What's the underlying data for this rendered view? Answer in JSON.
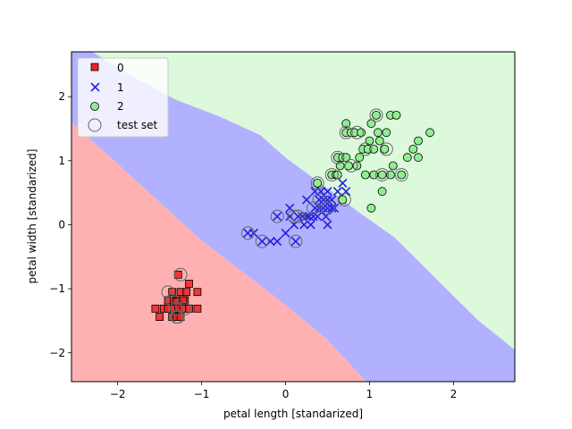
{
  "chart_data": {
    "type": "scatter",
    "xlabel": "petal length [standarized]",
    "ylabel": "petal width [standarized]",
    "xlim": [
      -2.55,
      2.73
    ],
    "ylim": [
      -2.45,
      2.7
    ],
    "xticks": [
      -2,
      -1,
      0,
      1,
      2
    ],
    "yticks": [
      -2,
      -1,
      0,
      1,
      2
    ],
    "xtick_labels": [
      "−2",
      "−1",
      "0",
      "1",
      "2"
    ],
    "ytick_labels": [
      "−2",
      "−1",
      "0",
      "1",
      "2"
    ],
    "grid": false,
    "legend_position": "top-left",
    "regions": [
      {
        "class": "0",
        "color": "#ffb1b1",
        "edge_color": "#c8326e",
        "polygon": [
          [
            -2.55,
            1.6
          ],
          [
            -2.0,
            0.95
          ],
          [
            -1.5,
            0.35
          ],
          [
            -1.0,
            -0.25
          ],
          [
            -0.5,
            -0.75
          ],
          [
            0.0,
            -1.25
          ],
          [
            0.5,
            -1.8
          ],
          [
            0.96,
            -2.45
          ],
          [
            -2.55,
            -2.45
          ]
        ]
      },
      {
        "class": "1",
        "color": "#b1b1ff",
        "edge_color": "#6aa8cc",
        "polygon": [
          [
            -2.55,
            2.7
          ],
          [
            -2.3,
            2.7
          ],
          [
            -1.8,
            2.3
          ],
          [
            -1.3,
            1.95
          ],
          [
            -0.8,
            1.7
          ],
          [
            -0.3,
            1.4
          ],
          [
            0.0,
            1.05
          ],
          [
            0.55,
            0.52
          ],
          [
            0.85,
            0.22
          ],
          [
            1.3,
            -0.2
          ],
          [
            1.8,
            -0.85
          ],
          [
            2.3,
            -1.5
          ],
          [
            2.73,
            -1.95
          ],
          [
            2.73,
            -2.45
          ],
          [
            0.96,
            -2.45
          ],
          [
            0.5,
            -1.8
          ],
          [
            0.0,
            -1.25
          ],
          [
            -0.5,
            -0.75
          ],
          [
            -1.0,
            -0.25
          ],
          [
            -1.5,
            0.35
          ],
          [
            -2.0,
            0.95
          ],
          [
            -2.55,
            1.6
          ]
        ]
      },
      {
        "class": "2",
        "color": "#dcf9dc",
        "edge_color": "#6aa8cc",
        "polygon": [
          [
            -2.3,
            2.7
          ],
          [
            2.73,
            2.7
          ],
          [
            2.73,
            -1.95
          ],
          [
            2.3,
            -1.5
          ],
          [
            1.8,
            -0.85
          ],
          [
            1.3,
            -0.2
          ],
          [
            0.85,
            0.22
          ],
          [
            0.55,
            0.52
          ],
          [
            0.0,
            1.05
          ],
          [
            -0.3,
            1.4
          ],
          [
            -0.8,
            1.7
          ],
          [
            -1.3,
            1.95
          ],
          [
            -1.8,
            2.3
          ]
        ]
      }
    ],
    "series": [
      {
        "name": "0",
        "marker": "square",
        "color": "#ee2222",
        "points": [
          [
            -1.28,
            -0.78
          ],
          [
            -1.35,
            -1.05
          ],
          [
            -1.25,
            -1.05
          ],
          [
            -1.18,
            -1.05
          ],
          [
            -1.05,
            -1.05
          ],
          [
            -1.4,
            -1.18
          ],
          [
            -1.33,
            -1.18
          ],
          [
            -1.28,
            -1.18
          ],
          [
            -1.2,
            -1.18
          ],
          [
            -1.15,
            -0.92
          ],
          [
            -1.55,
            -1.31
          ],
          [
            -1.45,
            -1.31
          ],
          [
            -1.4,
            -1.31
          ],
          [
            -1.33,
            -1.31
          ],
          [
            -1.28,
            -1.31
          ],
          [
            -1.22,
            -1.31
          ],
          [
            -1.15,
            -1.31
          ],
          [
            -1.05,
            -1.31
          ],
          [
            -1.5,
            -1.44
          ],
          [
            -1.35,
            -1.44
          ],
          [
            -1.3,
            -1.44
          ],
          [
            -1.25,
            -1.44
          ],
          [
            -1.3,
            -1.2
          ],
          [
            -1.22,
            -1.18
          ]
        ]
      },
      {
        "name": "1",
        "marker": "x",
        "color": "#2222dd",
        "points": [
          [
            -0.45,
            -0.13
          ],
          [
            -0.38,
            -0.13
          ],
          [
            -0.28,
            -0.26
          ],
          [
            -0.18,
            -0.26
          ],
          [
            -0.1,
            -0.26
          ],
          [
            -0.1,
            0.13
          ],
          [
            0.0,
            -0.13
          ],
          [
            0.05,
            0.13
          ],
          [
            0.05,
            0.26
          ],
          [
            0.1,
            0.0
          ],
          [
            0.12,
            -0.26
          ],
          [
            0.15,
            0.13
          ],
          [
            0.2,
            0.13
          ],
          [
            0.22,
            0.0
          ],
          [
            0.25,
            0.13
          ],
          [
            0.25,
            0.39
          ],
          [
            0.28,
            0.13
          ],
          [
            0.3,
            0.0
          ],
          [
            0.33,
            0.13
          ],
          [
            0.35,
            0.26
          ],
          [
            0.38,
            0.13
          ],
          [
            0.4,
            0.26
          ],
          [
            0.4,
            0.39
          ],
          [
            0.42,
            0.52
          ],
          [
            0.45,
            0.26
          ],
          [
            0.45,
            0.39
          ],
          [
            0.48,
            0.13
          ],
          [
            0.5,
            0.26
          ],
          [
            0.5,
            0.39
          ],
          [
            0.5,
            0.52
          ],
          [
            0.5,
            0.0
          ],
          [
            0.55,
            0.39
          ],
          [
            0.55,
            0.26
          ],
          [
            0.62,
            0.52
          ],
          [
            0.68,
            0.65
          ],
          [
            0.72,
            0.52
          ],
          [
            0.35,
            0.52
          ],
          [
            0.58,
            0.26
          ]
        ]
      },
      {
        "name": "2",
        "marker": "circle",
        "color": "#90ee90",
        "points": [
          [
            0.38,
            0.65
          ],
          [
            0.55,
            0.78
          ],
          [
            0.6,
            0.78
          ],
          [
            0.62,
            1.05
          ],
          [
            0.65,
            0.92
          ],
          [
            0.68,
            1.05
          ],
          [
            0.68,
            0.39
          ],
          [
            0.72,
            1.05
          ],
          [
            0.72,
            1.44
          ],
          [
            0.72,
            1.58
          ],
          [
            0.75,
            0.92
          ],
          [
            0.78,
            1.44
          ],
          [
            0.82,
            1.44
          ],
          [
            0.85,
            0.92
          ],
          [
            0.9,
            1.44
          ],
          [
            0.92,
            1.18
          ],
          [
            0.95,
            0.78
          ],
          [
            0.98,
            1.18
          ],
          [
            1.0,
            1.31
          ],
          [
            1.02,
            1.58
          ],
          [
            1.02,
            0.26
          ],
          [
            1.05,
            1.18
          ],
          [
            1.05,
            0.78
          ],
          [
            1.08,
            1.71
          ],
          [
            1.1,
            1.44
          ],
          [
            1.12,
            1.31
          ],
          [
            1.15,
            0.78
          ],
          [
            1.15,
            0.52
          ],
          [
            1.18,
            1.18
          ],
          [
            1.2,
            1.44
          ],
          [
            1.25,
            0.78
          ],
          [
            1.25,
            1.71
          ],
          [
            1.28,
            0.92
          ],
          [
            1.32,
            1.71
          ],
          [
            1.38,
            0.78
          ],
          [
            1.45,
            1.05
          ],
          [
            1.52,
            1.18
          ],
          [
            1.58,
            1.31
          ],
          [
            1.58,
            1.05
          ],
          [
            1.72,
            1.44
          ],
          [
            0.88,
            1.05
          ],
          [
            0.62,
            0.78
          ]
        ]
      }
    ],
    "test_set": {
      "name": "test set",
      "marker": "open-circle",
      "edge_color": "#666666",
      "points": [
        [
          -1.25,
          -0.78
        ],
        [
          -1.4,
          -1.05
        ],
        [
          -1.35,
          -1.18
        ],
        [
          -1.3,
          -1.31
        ],
        [
          -1.3,
          -1.44
        ],
        [
          -1.2,
          -1.31
        ],
        [
          -1.28,
          -1.44
        ],
        [
          -0.45,
          -0.13
        ],
        [
          -0.28,
          -0.26
        ],
        [
          -0.1,
          0.13
        ],
        [
          0.12,
          -0.26
        ],
        [
          0.1,
          0.13
        ],
        [
          0.15,
          0.13
        ],
        [
          0.33,
          0.26
        ],
        [
          0.4,
          0.39
        ],
        [
          0.5,
          0.26
        ],
        [
          0.38,
          0.65
        ],
        [
          0.72,
          1.44
        ],
        [
          0.78,
          0.92
        ],
        [
          0.85,
          1.44
        ],
        [
          1.08,
          1.71
        ],
        [
          0.95,
          1.18
        ],
        [
          1.15,
          0.78
        ],
        [
          1.2,
          1.18
        ],
        [
          1.38,
          0.78
        ],
        [
          0.55,
          0.78
        ],
        [
          0.62,
          1.05
        ],
        [
          0.7,
          0.39
        ]
      ]
    },
    "legend": [
      "0",
      "1",
      "2",
      "test set"
    ]
  }
}
